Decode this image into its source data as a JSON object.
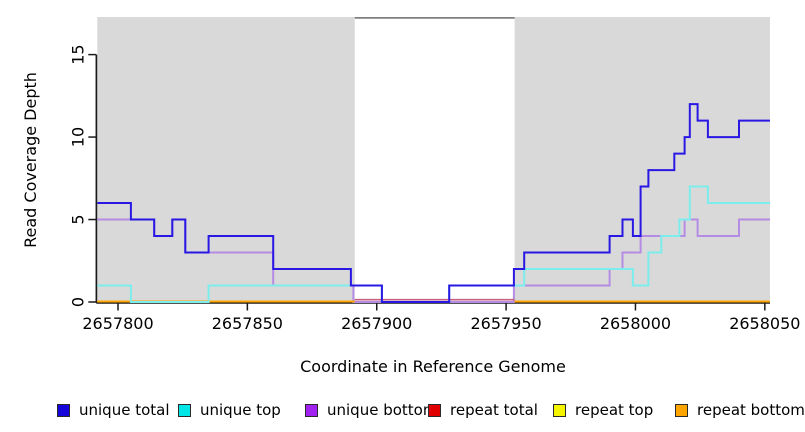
{
  "chart_data": {
    "type": "line",
    "subtype": "step-coverage-plot",
    "title": "",
    "xlabel": "Coordinate in Reference Genome",
    "ylabel": "Read Coverage Depth",
    "xlim": [
      2657792,
      2658052
    ],
    "ylim": [
      0,
      17.28
    ],
    "grid": "off",
    "panel_background": "#D9D9D9",
    "axis_color": "#1a1a1a",
    "x_ticks": [
      {
        "value": 2657800,
        "label": "2657800"
      },
      {
        "value": 2657850,
        "label": "2657850"
      },
      {
        "value": 2657900,
        "label": "2657900"
      },
      {
        "value": 2657950,
        "label": "2657950"
      },
      {
        "value": 2658000,
        "label": "2658000"
      },
      {
        "value": 2658050,
        "label": "2658050"
      }
    ],
    "y_ticks": [
      {
        "value": 0,
        "label": "0"
      },
      {
        "value": 5,
        "label": "5"
      },
      {
        "value": 10,
        "label": "10"
      },
      {
        "value": 15,
        "label": "15"
      }
    ],
    "masked_region": {
      "x0": 2657891.5,
      "x1": 2657953.3,
      "fill": "#FFFFFF",
      "top_border_color": "#7F7F7F",
      "zero_line_color": "#C95F7E"
    },
    "series": [
      {
        "name": "unique total",
        "swatch_color": "#1606D9",
        "line_color": "#2918E4",
        "steps": [
          [
            2657792,
            6
          ],
          [
            2657805,
            5
          ],
          [
            2657814,
            4
          ],
          [
            2657821,
            5
          ],
          [
            2657826,
            3
          ],
          [
            2657835,
            4
          ],
          [
            2657860,
            2
          ],
          [
            2657890,
            1
          ],
          [
            2657902,
            0
          ],
          [
            2657928,
            1
          ],
          [
            2657953,
            2
          ],
          [
            2657957,
            3
          ],
          [
            2657990,
            4
          ],
          [
            2657995,
            5
          ],
          [
            2657999,
            4
          ],
          [
            2658002,
            7
          ],
          [
            2658005,
            8
          ],
          [
            2658015,
            9
          ],
          [
            2658019,
            10
          ],
          [
            2658021,
            12
          ],
          [
            2658024,
            11
          ],
          [
            2658028,
            10
          ],
          [
            2658040,
            11
          ]
        ]
      },
      {
        "name": "unique top",
        "swatch_color": "#00E5E5",
        "line_color": "#7BEDEC",
        "steps": [
          [
            2657792,
            1
          ],
          [
            2657805,
            0
          ],
          [
            2657835,
            1
          ],
          [
            2657902,
            0
          ],
          [
            2657928,
            1
          ],
          [
            2657957,
            2
          ],
          [
            2657999,
            1
          ],
          [
            2658005,
            3
          ],
          [
            2658010,
            4
          ],
          [
            2658017,
            5
          ],
          [
            2658021,
            7
          ],
          [
            2658028,
            6
          ]
        ]
      },
      {
        "name": "unique bottom",
        "swatch_color": "#A021F0",
        "line_color": "#B58CE4",
        "steps": [
          [
            2657792,
            5
          ],
          [
            2657814,
            4
          ],
          [
            2657821,
            5
          ],
          [
            2657826,
            3
          ],
          [
            2657860,
            1
          ],
          [
            2657891,
            0
          ],
          [
            2657953,
            1
          ],
          [
            2657990,
            2
          ],
          [
            2657995,
            3
          ],
          [
            2658002,
            4
          ],
          [
            2658019,
            5
          ],
          [
            2658024,
            4
          ],
          [
            2658040,
            5
          ]
        ]
      },
      {
        "name": "repeat total",
        "swatch_color": "#E00000",
        "line_color": "#E00000",
        "steps": [
          [
            2657792,
            0
          ]
        ],
        "segments": [
          [
            2657792,
            2657891.5
          ],
          [
            2657953.3,
            2658052
          ]
        ]
      },
      {
        "name": "repeat top",
        "swatch_color": "#F5F500",
        "line_color": "#F5F500",
        "steps": [
          [
            2657792,
            0
          ]
        ],
        "segments": [
          [
            2657792,
            2657891.5
          ],
          [
            2657953.3,
            2658052
          ]
        ]
      },
      {
        "name": "repeat bottom",
        "swatch_color": "#FFA500",
        "line_color": "#FFA500",
        "steps": [
          [
            2657792,
            0
          ]
        ],
        "segments": [
          [
            2657792,
            2657891.5
          ],
          [
            2657953.3,
            2658052
          ]
        ]
      }
    ],
    "legend_position": "bottom"
  }
}
